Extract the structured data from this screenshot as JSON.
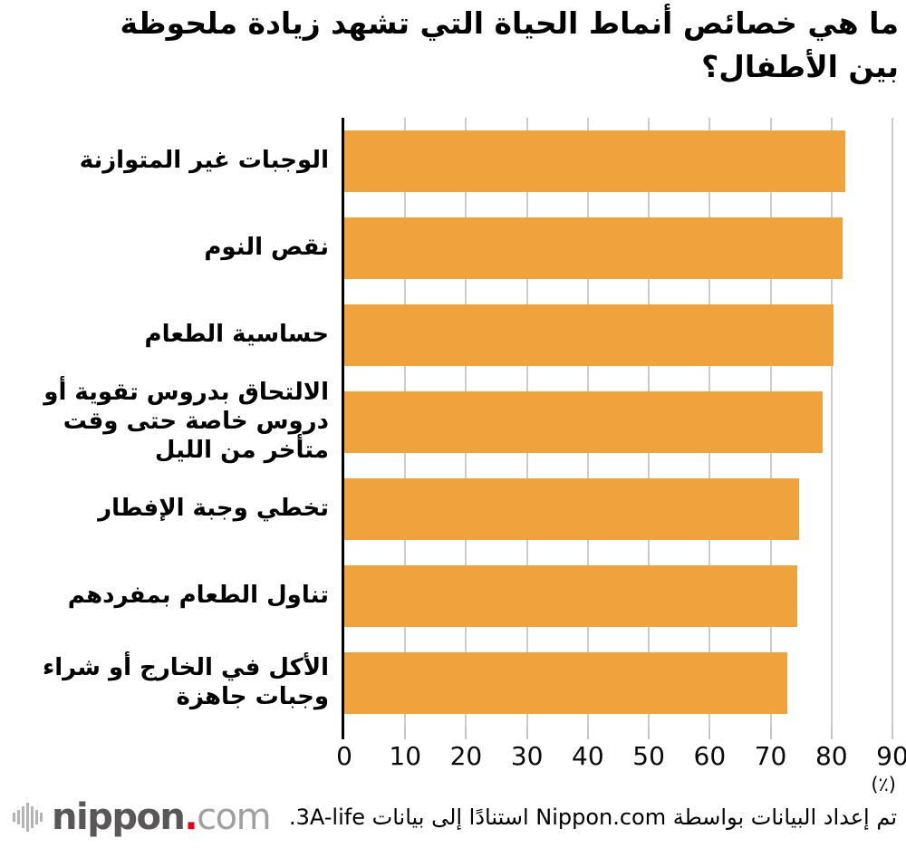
{
  "header": {
    "title_lines": [
      "ما هي خصائص أنماط الحياة التي تشهد زيادة ملحوظة",
      "بين الأطفال؟"
    ]
  },
  "chart_data": {
    "type": "bar",
    "orientation": "horizontal",
    "title": "ما هي خصائص أنماط الحياة التي تشهد زيادة ملحوظة بين الأطفال؟",
    "categories": [
      "الوجبات غير المتوازنة",
      "نقص النوم",
      "حساسية الطعام",
      "الالتحاق بدروس تقوية أو دروس خاصة حتى وقت متأخر من الليل",
      "تخطي وجبة الإفطار",
      "تناول الطعام بمفردهم",
      "الأكل في الخارج أو شراء وجبات جاهزة"
    ],
    "values": [
      82.3,
      81.8,
      80.3,
      78.5,
      74.7,
      74.4,
      72.8
    ],
    "xlim": [
      0,
      90
    ],
    "xticks": [
      0,
      10,
      20,
      30,
      40,
      50,
      60,
      70,
      80,
      90
    ],
    "unit_label": "(٪)",
    "xlabel": "",
    "ylabel": "",
    "grid": true,
    "legend": false,
    "bar_color": "#F0A23C",
    "gridline_color": "#CCCCCC",
    "axis_color": "#000000"
  },
  "footer": {
    "source_text": "تم إعداد البيانات بواسطة Nippon.com استنادًا إلى بيانات 3A-life.",
    "logo": {
      "icon": "waveform-icon",
      "name": "nippon",
      "dot": ".",
      "tld": "com",
      "name_color": "#595757",
      "dot_color": "#E60012",
      "tld_color": "#9FA0A0",
      "icon_color": "#B4B4B5"
    }
  }
}
